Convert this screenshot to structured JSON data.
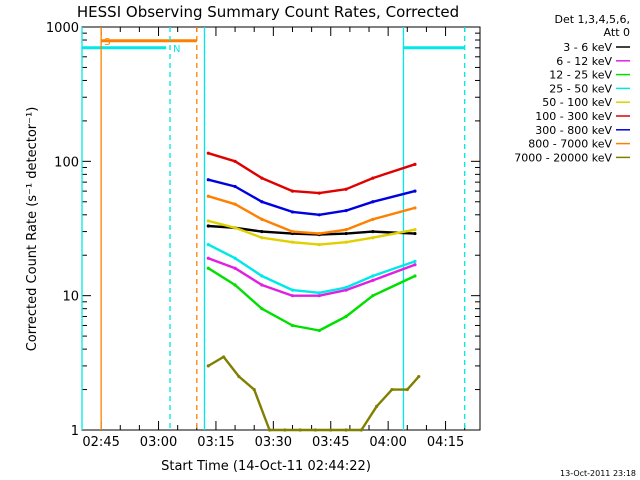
{
  "chart_data": {
    "type": "line",
    "title": "HESSI Observing Summary Count Rates, Corrected",
    "xlabel": "Start Time (14-Oct-11 02:44:22)",
    "ylabel": "Corrected Count Rate (s⁻¹ detector⁻¹)",
    "yscale": "log",
    "ylim": [
      1,
      1000
    ],
    "xlim": [
      "02:40",
      "04:24"
    ],
    "x_ticks": [
      "02:45",
      "03:00",
      "03:15",
      "03:30",
      "03:45",
      "04:00",
      "04:15"
    ],
    "y_ticks": [
      "1",
      "10",
      "100",
      "1000"
    ],
    "legend_header": [
      "Det 1,3,4,5,6,",
      "Att 0"
    ],
    "legend_position": "outside-right",
    "timestamp": "13-Oct-2011 23:18",
    "series": [
      {
        "name": "3 - 6 keV",
        "color": "#000000",
        "x": [
          "03:13",
          "03:20",
          "03:27",
          "03:35",
          "03:42",
          "03:49",
          "03:56",
          "04:07"
        ],
        "y": [
          33,
          32,
          30,
          29,
          28.5,
          29,
          30,
          29
        ]
      },
      {
        "name": "6 - 12 keV",
        "color": "#e020e0",
        "x": [
          "03:13",
          "03:20",
          "03:27",
          "03:35",
          "03:42",
          "03:49",
          "03:56",
          "04:07"
        ],
        "y": [
          19,
          16,
          12,
          10,
          10,
          11,
          13,
          17
        ]
      },
      {
        "name": "12 - 25 keV",
        "color": "#00e000",
        "x": [
          "03:13",
          "03:20",
          "03:27",
          "03:35",
          "03:42",
          "03:49",
          "03:56",
          "04:07"
        ],
        "y": [
          16,
          12,
          8,
          6,
          5.5,
          7,
          10,
          14
        ]
      },
      {
        "name": "25 - 50 keV",
        "color": "#00e8e8",
        "x": [
          "03:13",
          "03:20",
          "03:27",
          "03:35",
          "03:42",
          "03:49",
          "03:56",
          "04:07"
        ],
        "y": [
          24,
          19,
          14,
          11,
          10.5,
          11.5,
          14,
          18
        ]
      },
      {
        "name": "50 - 100 keV",
        "color": "#e0d000",
        "x": [
          "03:13",
          "03:20",
          "03:27",
          "03:35",
          "03:42",
          "03:49",
          "03:56",
          "04:07"
        ],
        "y": [
          36,
          32,
          27,
          25,
          24,
          25,
          27,
          31
        ]
      },
      {
        "name": "100 - 300 keV",
        "color": "#e00000",
        "x": [
          "03:13",
          "03:20",
          "03:27",
          "03:35",
          "03:42",
          "03:49",
          "03:56",
          "04:07"
        ],
        "y": [
          115,
          100,
          75,
          60,
          58,
          62,
          75,
          95
        ]
      },
      {
        "name": "300 - 800 keV",
        "color": "#0000e0",
        "x": [
          "03:13",
          "03:20",
          "03:27",
          "03:35",
          "03:42",
          "03:49",
          "03:56",
          "04:07"
        ],
        "y": [
          73,
          65,
          50,
          42,
          40,
          43,
          50,
          60
        ]
      },
      {
        "name": "800 - 7000 keV",
        "color": "#ff8000",
        "x": [
          "03:13",
          "03:20",
          "03:27",
          "03:35",
          "03:42",
          "03:49",
          "03:56",
          "04:07"
        ],
        "y": [
          55,
          48,
          37,
          30,
          29,
          31,
          37,
          45
        ]
      },
      {
        "name": "7000 - 20000 keV",
        "color": "#808000",
        "x": [
          "03:13",
          "03:17",
          "03:21",
          "03:25",
          "03:29",
          "03:33",
          "03:37",
          "03:41",
          "03:45",
          "03:49",
          "03:53",
          "03:57",
          "04:01",
          "04:05",
          "04:08"
        ],
        "y": [
          3,
          3.5,
          2.5,
          2,
          1,
          1,
          1,
          1,
          1,
          1,
          1,
          1.5,
          2,
          2,
          2.5
        ]
      }
    ],
    "overlays": [
      {
        "color": "#00e8e8",
        "style": "solid",
        "x_start": "02:40",
        "x_end": "03:02",
        "level": 700,
        "label": ""
      },
      {
        "color": "#00e8e8",
        "style": "solid",
        "x_start": "04:04",
        "x_end": "04:20",
        "level": 700,
        "label": ""
      },
      {
        "color": "#ff8000",
        "style": "solid",
        "x_start": "02:45",
        "x_end": "03:10",
        "level": 790,
        "label": "S"
      },
      {
        "color": "#00e8e8",
        "style": "dashed",
        "x_start": "03:03",
        "x_end": "03:03",
        "level": null,
        "label": "N"
      },
      {
        "color": "#00e8e8",
        "style": "dashed",
        "x_start": "04:20",
        "x_end": "04:20",
        "level": null,
        "label": ""
      },
      {
        "color": "#00e8e8",
        "style": "solid",
        "x_start": "04:04",
        "x_end": "04:04",
        "level": null,
        "label": ""
      },
      {
        "color": "#00e8e8",
        "style": "solid",
        "x_start": "02:40",
        "x_end": "02:40",
        "level": null,
        "label": ""
      },
      {
        "color": "#ff8000",
        "style": "solid",
        "x_start": "02:45",
        "x_end": "02:45",
        "level": null,
        "label": ""
      },
      {
        "color": "#ff8000",
        "style": "dashed",
        "x_start": "03:10",
        "x_end": "03:10",
        "level": null,
        "label": ""
      },
      {
        "color": "#00e8e8",
        "style": "solid",
        "x_start": "03:12",
        "x_end": "03:12",
        "level": null,
        "label": ""
      }
    ]
  }
}
